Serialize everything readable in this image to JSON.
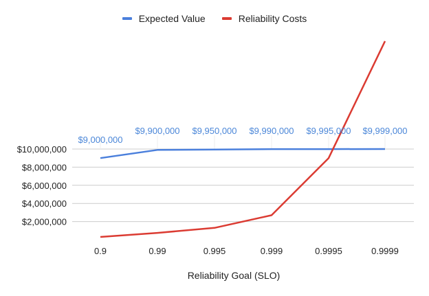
{
  "legend": [
    {
      "name": "Expected Value",
      "color": "#4a7fdc"
    },
    {
      "name": "Reliability Costs",
      "color": "#db3b32"
    }
  ],
  "chart_data": {
    "type": "line",
    "title": "",
    "xlabel": "Reliability Goal (SLO)",
    "ylabel": "",
    "categories": [
      "0.9",
      "0.99",
      "0.995",
      "0.999",
      "0.9995",
      "0.9999"
    ],
    "y_ticks": [
      "$2,000,000",
      "$4,000,000",
      "$6,000,000",
      "$8,000,000",
      "$10,000,000"
    ],
    "ylim": [
      0,
      10000000
    ],
    "grid": true,
    "legend_position": "top",
    "series": [
      {
        "name": "Expected Value",
        "color": "#4a7fdc",
        "values": [
          9000000,
          9900000,
          9950000,
          9990000,
          9995000,
          9999000
        ],
        "data_labels": [
          "$9,000,000",
          "$9,900,000",
          "$9,950,000",
          "$9,990,000",
          "$9,995,000",
          "$9,999,000"
        ]
      },
      {
        "name": "Reliability Costs",
        "color": "#db3b32",
        "values": [
          300000,
          750000,
          1300000,
          2700000,
          9000000,
          21900000
        ]
      }
    ]
  }
}
